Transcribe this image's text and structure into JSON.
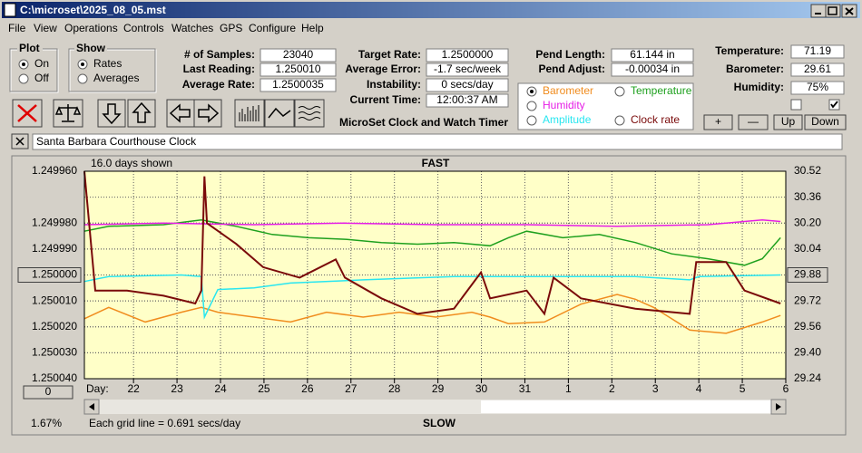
{
  "window": {
    "title": "C:\\microset\\2025_08_05.mst"
  },
  "menu": [
    "File",
    "View",
    "Operations",
    "Controls",
    "Watches",
    "GPS",
    "Configure",
    "Help"
  ],
  "plot_group": {
    "title": "Plot",
    "options": [
      "On",
      "Off"
    ],
    "selected": 0
  },
  "show_group": {
    "title": "Show",
    "options": [
      "Rates",
      "Averages"
    ],
    "selected": 0
  },
  "fields_1": [
    {
      "label": "# of Samples:",
      "value": "23040"
    },
    {
      "label": "Last Reading:",
      "value": "1.250010"
    },
    {
      "label": "Average Rate:",
      "value": "1.2500035"
    }
  ],
  "fields_2": [
    {
      "label": "Target Rate:",
      "value": "1.2500000"
    },
    {
      "label": "Average Error:",
      "value": "-1.7 sec/week"
    },
    {
      "label": "Instability:",
      "value": "0 secs/day"
    },
    {
      "label": "Current Time:",
      "value": "12:00:37 AM"
    }
  ],
  "app_label": "MicroSet Clock and Watch Timer",
  "fields_3": [
    {
      "label": "Pend Length:",
      "value": "61.144 in"
    },
    {
      "label": "Pend Adjust:",
      "value": "-0.00034 in"
    }
  ],
  "fields_4": [
    {
      "label": "Temperature:",
      "value": "71.19"
    },
    {
      "label": "Barometer:",
      "value": "29.61"
    },
    {
      "label": "Humidity:",
      "value": "75%"
    }
  ],
  "checkboxes": [
    false,
    true
  ],
  "buttons": [
    "+",
    "—",
    "Up",
    "Down"
  ],
  "description": "Santa Barbara Courthouse Clock",
  "chart_data": {
    "type": "line",
    "annotation": "16.0 days shown",
    "top_label": "FAST",
    "bottom_label": "SLOW",
    "footnote": "Each grid line = 0.691 secs/day",
    "zoom": "1.67%",
    "offset": "0",
    "x_label": "Day:",
    "selected_series": 0,
    "xlim": [
      20.87,
      37
    ],
    "xticks": [
      22,
      23,
      24,
      25,
      26,
      27,
      28,
      29,
      30,
      31,
      {
        "value": 32,
        "label": "1"
      },
      {
        "value": 33,
        "label": "2"
      },
      {
        "value": 34,
        "label": "3"
      },
      {
        "value": 35,
        "label": "4"
      },
      {
        "value": 36,
        "label": "5"
      },
      {
        "value": 37,
        "label": "6"
      }
    ],
    "ylim": [
      1.24996,
      1.25004
    ],
    "yinvert": true,
    "yticks": [
      {
        "value": 1.24996,
        "label": "1.249960"
      },
      {
        "value": 1.24998,
        "label": "1.249980"
      },
      {
        "value": 1.24999,
        "label": "1.249990"
      },
      {
        "value": 1.25,
        "label": "1.250000"
      },
      {
        "value": 1.25001,
        "label": "1.250010"
      },
      {
        "value": 1.25002,
        "label": "1.250020"
      },
      {
        "value": 1.25003,
        "label": "1.250030"
      },
      {
        "value": 1.25004,
        "label": "1.250040"
      }
    ],
    "y2lim": [
      29.24,
      30.52
    ],
    "y2ticks": [
      30.52,
      30.36,
      {
        "value": 30.2,
        "label": "30.20"
      },
      30.04,
      29.88,
      29.72,
      29.56,
      {
        "value": 29.4,
        "label": "29.40"
      },
      29.24
    ],
    "grid": true,
    "series": [
      {
        "name": "Barometer",
        "color": "#f08c1e",
        "axis": "y2",
        "x": [
          20.87,
          21.43,
          22.27,
          23.1,
          23.56,
          23.94,
          24.77,
          25.61,
          26.44,
          27.28,
          28.11,
          28.95,
          29.78,
          30.2,
          30.62,
          31.45,
          32.29,
          33.12,
          33.54,
          33.96,
          34.79,
          35.63,
          36.46,
          36.88
        ],
        "values": [
          29.61,
          29.68,
          29.59,
          29.65,
          29.68,
          29.65,
          29.62,
          29.59,
          29.65,
          29.62,
          29.65,
          29.62,
          29.65,
          29.62,
          29.58,
          29.59,
          29.7,
          29.76,
          29.73,
          29.68,
          29.54,
          29.52,
          29.59,
          29.63
        ]
      },
      {
        "name": "Temperature",
        "color": "#1ea01e",
        "axis": "y2",
        "x": [
          20.87,
          21.43,
          22.69,
          23.56,
          24.36,
          25.19,
          26.03,
          26.86,
          27.7,
          28.53,
          29.37,
          30.2,
          30.62,
          31.04,
          31.87,
          32.71,
          33.54,
          34.38,
          35.21,
          36.05,
          36.46,
          36.88
        ],
        "values": [
          30.15,
          30.18,
          30.19,
          30.22,
          30.18,
          30.13,
          30.11,
          30.1,
          30.08,
          30.07,
          30.08,
          30.06,
          30.11,
          30.15,
          30.11,
          30.13,
          30.08,
          30.01,
          29.98,
          29.94,
          29.98,
          30.11
        ]
      },
      {
        "name": "Humidity",
        "color": "#e61ee6",
        "axis": "y2",
        "x": [
          20.87,
          22.69,
          24.77,
          26.86,
          28.95,
          31.04,
          33.12,
          35.21,
          36.46,
          36.88
        ],
        "values": [
          30.19,
          30.2,
          30.19,
          30.2,
          30.19,
          30.19,
          30.18,
          30.19,
          30.22,
          30.21
        ]
      },
      {
        "name": "Amplitude",
        "color": "#28e6f0",
        "axis": "y2",
        "x": [
          20.87,
          21.43,
          23.1,
          23.56,
          23.63,
          23.94,
          24.77,
          25.61,
          27.28,
          29.37,
          31.45,
          33.54,
          34.79,
          35.0,
          36.88
        ],
        "values": [
          29.84,
          29.87,
          29.88,
          29.87,
          29.62,
          29.79,
          29.8,
          29.83,
          29.85,
          29.87,
          29.87,
          29.87,
          29.85,
          29.87,
          29.88
        ]
      },
      {
        "name": "Clock rate",
        "color": "#7a0a0a",
        "x": [
          20.87,
          21.12,
          21.85,
          22.69,
          23.42,
          23.56,
          23.63,
          23.69,
          24.36,
          24.98,
          25.82,
          26.65,
          26.86,
          27.7,
          28.53,
          29.37,
          29.99,
          30.2,
          31.04,
          31.45,
          31.66,
          32.29,
          33.54,
          34.79,
          34.94,
          35.63,
          36.05,
          36.88
        ],
        "values": [
          1.24996,
          1.250006,
          1.250006,
          1.250008,
          1.250011,
          1.250006,
          1.249962,
          1.24998,
          1.249988,
          1.249997,
          1.250001,
          1.249994,
          1.250001,
          1.250009,
          1.250015,
          1.250013,
          1.249999,
          1.250009,
          1.250006,
          1.250015,
          1.250001,
          1.250009,
          1.250013,
          1.250015,
          1.249995,
          1.249995,
          1.250006,
          1.250011
        ]
      }
    ]
  }
}
